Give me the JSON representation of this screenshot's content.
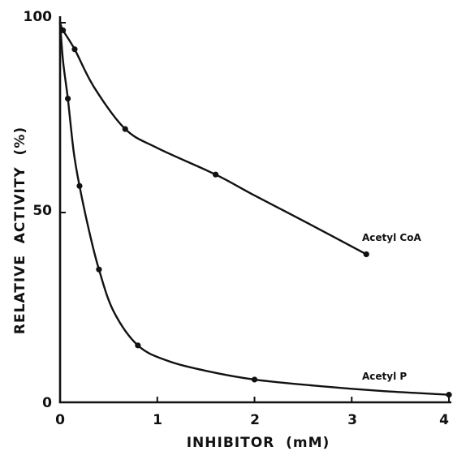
{
  "chart_data": {
    "type": "line",
    "title": "",
    "xlabel": "INHIBITOR  (mM)",
    "ylabel": "RELATIVE  ACTIVITY  (%)",
    "xlim": [
      0,
      4
    ],
    "ylim": [
      0,
      100
    ],
    "x_ticks": [
      "0",
      "1",
      "2",
      "3",
      "4"
    ],
    "y_ticks": [
      "0",
      "50",
      "100"
    ],
    "grid": false,
    "series": [
      {
        "name": "Acetyl CoA",
        "points": [
          [
            0.03,
            98
          ],
          [
            0.15,
            93
          ],
          [
            0.67,
            72
          ],
          [
            1.6,
            60
          ],
          [
            3.15,
            39
          ]
        ],
        "curve": [
          [
            0,
            100
          ],
          [
            0.03,
            98
          ],
          [
            0.15,
            93
          ],
          [
            0.35,
            83
          ],
          [
            0.67,
            72
          ],
          [
            1.0,
            67
          ],
          [
            1.6,
            60
          ],
          [
            2.0,
            54.5
          ],
          [
            2.6,
            46.5
          ],
          [
            3.15,
            39
          ]
        ]
      },
      {
        "name": "Acetyl P",
        "points": [
          [
            0.08,
            80
          ],
          [
            0.2,
            57
          ],
          [
            0.4,
            35
          ],
          [
            0.8,
            15
          ],
          [
            2.0,
            6
          ],
          [
            4.0,
            2
          ]
        ],
        "curve": [
          [
            0,
            100
          ],
          [
            0.03,
            90
          ],
          [
            0.08,
            80
          ],
          [
            0.14,
            66
          ],
          [
            0.2,
            57
          ],
          [
            0.3,
            45
          ],
          [
            0.4,
            35
          ],
          [
            0.55,
            24
          ],
          [
            0.8,
            15
          ],
          [
            1.1,
            11
          ],
          [
            1.5,
            8.3
          ],
          [
            2.0,
            6
          ],
          [
            2.7,
            4.2
          ],
          [
            3.3,
            3
          ],
          [
            4.0,
            2
          ]
        ]
      }
    ]
  }
}
